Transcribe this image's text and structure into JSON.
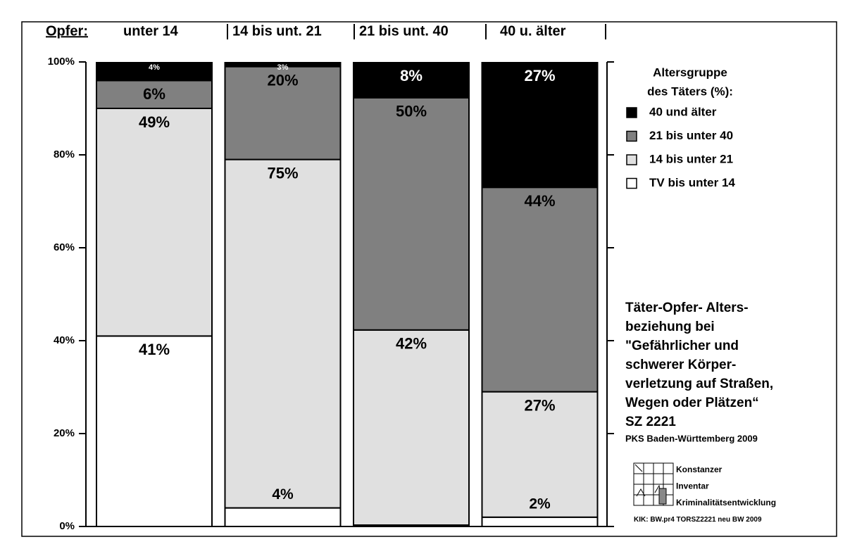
{
  "chart_data": {
    "type": "stacked_bar",
    "axis_title": "Opfer:",
    "categories": [
      "unter 14",
      "14 bis unt. 21",
      "21 bis unt. 40",
      "40 u. älter"
    ],
    "series": [
      {
        "name": "TV bis unter 14",
        "color": "#ffffff",
        "values": [
          41,
          4,
          0.3,
          2
        ],
        "value_labels": [
          "41%",
          "4%",
          null,
          "2%"
        ]
      },
      {
        "name": "14 bis unter 21",
        "color": "#e0e0e0",
        "values": [
          49,
          75,
          42,
          27
        ],
        "value_labels": [
          "49%",
          "75%",
          "42%",
          "27%"
        ]
      },
      {
        "name": "21 bis unter 40",
        "color": "#808080",
        "values": [
          6,
          20,
          50,
          44
        ],
        "value_labels": [
          "6%",
          "20%",
          "50%",
          "44%"
        ]
      },
      {
        "name": "40 und älter",
        "color": "#000000",
        "values": [
          4,
          3,
          8,
          27
        ],
        "value_labels": [
          "4%",
          "3%",
          "8%",
          "27%"
        ]
      }
    ],
    "ylim": [
      0,
      100
    ],
    "yticks": [
      {
        "value": 0,
        "label": "0%"
      },
      {
        "value": 20,
        "label": "20%"
      },
      {
        "value": 40,
        "label": "40%"
      },
      {
        "value": 60,
        "label": "60%"
      },
      {
        "value": 80,
        "label": "80%"
      },
      {
        "value": 100,
        "label": "100%"
      }
    ],
    "legend_title": [
      "Altersgruppe",
      "des Täters (%):"
    ],
    "legend_position": "right",
    "annotation": [
      "Täter-Opfer- Alters-",
      "beziehung bei",
      "\"Gefährlicher und",
      "schwerer Körper-",
      "verletzung auf Straßen,",
      "Wegen oder Plätzen“",
      "SZ 2221"
    ],
    "source": "PKS Baden-Württemberg 2009",
    "logo_text": [
      "Konstanzer",
      "Inventar",
      "Kriminalitätsentwicklung"
    ],
    "footer": "KIK: BW.pr4 TORSZ2221 neu BW",
    "footer_year": "2009"
  }
}
